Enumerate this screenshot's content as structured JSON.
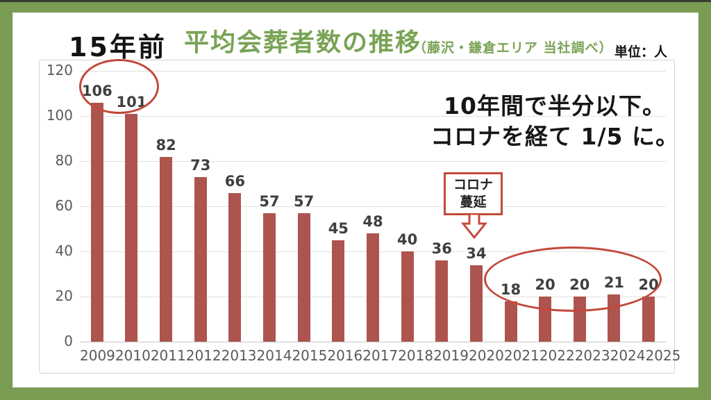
{
  "header": {
    "left_label": "15年前",
    "unit_label": "単位：人"
  },
  "annotations": {
    "headline_line1": "10年間で半分以下。",
    "headline_line2": "コロナを経て 1/5 に。",
    "corona_line1": "コロナ",
    "corona_line2": "蔓延"
  },
  "chart_data": {
    "type": "bar",
    "title": "平均会葬者数の推移",
    "subtitle": "（藤沢・鎌倉エリア 当社調べ）",
    "unit": "人",
    "categories": [
      "2009",
      "2010",
      "2011",
      "2012",
      "2013",
      "2014",
      "2015",
      "2016",
      "2017",
      "2018",
      "2019",
      "2020",
      "2021",
      "2022",
      "2023",
      "2024",
      "2025"
    ],
    "values": [
      106,
      101,
      82,
      73,
      66,
      57,
      57,
      45,
      48,
      40,
      36,
      34,
      18,
      20,
      20,
      21,
      20
    ],
    "ylim": [
      0,
      120
    ],
    "yticks": [
      0,
      20,
      40,
      60,
      80,
      100,
      120
    ],
    "grid": true,
    "legend_position": "none",
    "annotations": [
      "15年前",
      "コロナ蔓延",
      "10年間で半分以下。コロナを経て 1/5 に。"
    ],
    "highlighted_groups": [
      [
        "2009",
        "2010"
      ],
      [
        "2021",
        "2022",
        "2023",
        "2024",
        "2025"
      ]
    ]
  },
  "colors": {
    "frame_green": "#7a9c53",
    "title_green": "#79a355",
    "bar_red": "#ae544e",
    "annotation_red": "#c2493a",
    "axis_text": "#5a5a5a",
    "value_text": "#3f3f3f",
    "gridline": "#e1e1e1"
  }
}
